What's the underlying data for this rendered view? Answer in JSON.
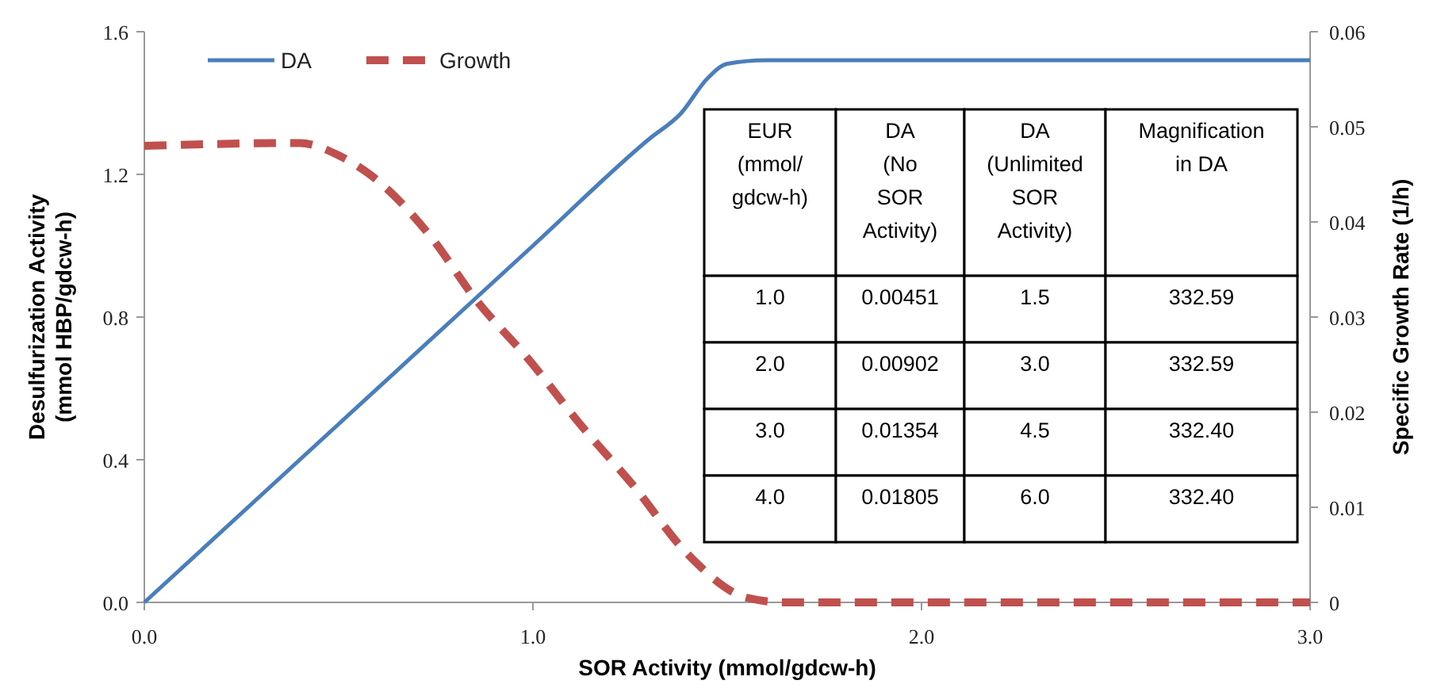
{
  "chart_data": {
    "type": "line",
    "xlabel": "SOR Activity (mmol/gdcw-h)",
    "ylabel": "Desulfurization Activity\n(mmol HBP/gdcw-h)",
    "y2label": "Specific Growth Rate (1/h)",
    "xlim": [
      0,
      3
    ],
    "xticks": [
      {
        "value": 0,
        "label": "0.0"
      },
      {
        "value": 1,
        "label": "1.0"
      },
      {
        "value": 2,
        "label": "2.0"
      },
      {
        "value": 3,
        "label": "3.0"
      }
    ],
    "ylim": [
      0,
      1.6
    ],
    "yticks": [
      {
        "value": 0,
        "label": "0.0"
      },
      {
        "value": 0.4,
        "label": "0.4"
      },
      {
        "value": 0.8,
        "label": "0.8"
      },
      {
        "value": 1.2,
        "label": "1.2"
      },
      {
        "value": 1.6,
        "label": "1.6"
      }
    ],
    "y2lim": [
      0,
      0.06
    ],
    "y2ticks": [
      0,
      0.01,
      0.02,
      0.03,
      0.04,
      0.05,
      0.06
    ],
    "legend": "top left",
    "grid": false,
    "marker": "none",
    "series": [
      {
        "name": "DA",
        "color": "#4a7ebb",
        "line_style": "solid",
        "x": [
          0,
          1.0,
          1.3,
          1.38,
          1.45,
          1.5,
          1.6,
          2.0,
          3.0
        ],
        "values": [
          0,
          1.0,
          1.3,
          1.37,
          1.47,
          1.51,
          1.52,
          1.52,
          1.52
        ]
      },
      {
        "name": "Growth",
        "color": "#c0504d",
        "line_style": "dashed",
        "axis": "y2",
        "x": [
          0,
          0.4,
          0.5,
          0.58,
          0.74,
          0.85,
          0.99,
          1.12,
          1.26,
          1.4,
          1.55,
          1.65,
          2.0,
          3.0
        ],
        "values": [
          0.048,
          0.0483,
          0.047,
          0.045,
          0.0383,
          0.032,
          0.0255,
          0.0188,
          0.0122,
          0.005,
          0.0005,
          0,
          0,
          0
        ]
      }
    ],
    "annotations": [
      "EUR\n(mmol/\ngdcw-h)",
      "DA\n(No\nSOR\nActivity)",
      "DA\n(Unlimited\nSOR\nActivity)",
      "Magnification\nin DA",
      "1.0",
      "0.00451",
      "1.5",
      "332.59",
      "2.0",
      "0.00902",
      "3.0",
      "332.59",
      "3.0",
      "0.01354",
      "4.5",
      "332.40",
      "4.0",
      "0.01805",
      "6.0",
      "332.40"
    ]
  }
}
